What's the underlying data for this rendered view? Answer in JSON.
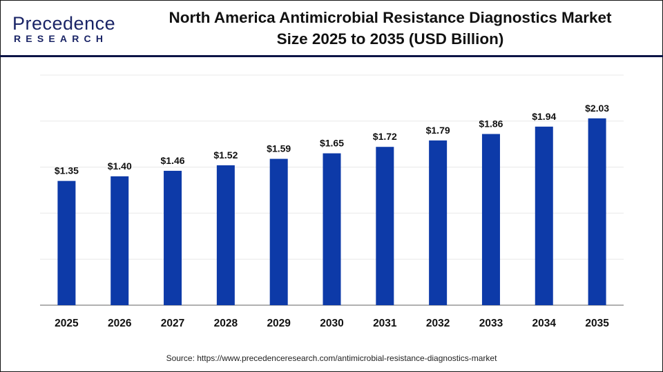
{
  "brand": {
    "logo_line1": "Precedence",
    "logo_line2": "RESEARCH"
  },
  "header": {
    "title_line1": "North America Antimicrobial Resistance Diagnostics Market",
    "title_line2": "Size 2025 to 2035 (USD Billion)"
  },
  "source": "Source: https://www.precedenceresearch.com/antimicrobial-resistance-diagnostics-market",
  "colors": {
    "bar": "#0d3aa8",
    "header_line": "#0b1446",
    "grid": "#e8e8e8",
    "axis": "#b0b0b0"
  },
  "chart_data": {
    "type": "bar",
    "title": "North America Antimicrobial Resistance Diagnostics Market Size 2025 to 2035 (USD Billion)",
    "categories": [
      "2025",
      "2026",
      "2027",
      "2028",
      "2029",
      "2030",
      "2031",
      "2032",
      "2033",
      "2034",
      "2035"
    ],
    "values": [
      1.35,
      1.4,
      1.46,
      1.52,
      1.59,
      1.65,
      1.72,
      1.79,
      1.86,
      1.94,
      2.03
    ],
    "labels": [
      "$1.35",
      "$1.40",
      "$1.46",
      "$1.52",
      "$1.59",
      "$1.65",
      "$1.72",
      "$1.79",
      "$1.86",
      "$1.94",
      "$2.03"
    ],
    "xlabel": "",
    "ylabel": "",
    "ylim": [
      0,
      2.5
    ],
    "grid": true,
    "legend": "none"
  }
}
